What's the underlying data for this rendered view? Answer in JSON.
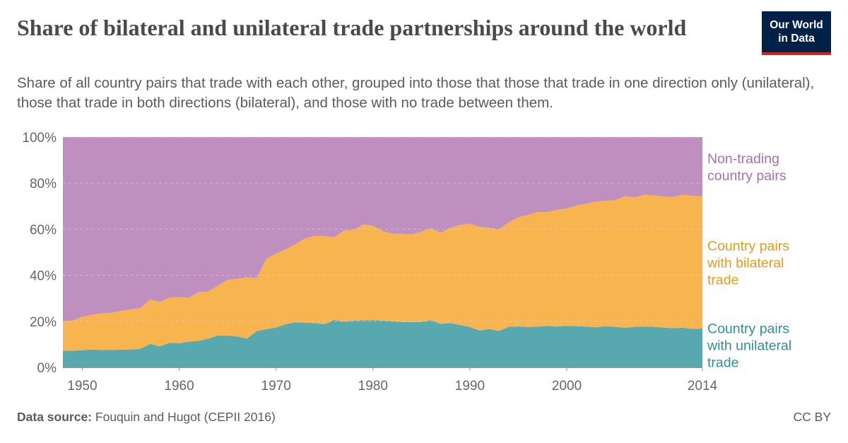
{
  "title": "Share of bilateral and unilateral trade partnerships around the world",
  "subtitle": "Share of all country pairs that trade with each other, grouped into those that those that trade in one direction only (unilateral), those that trade in both directions (bilateral), and those with no trade between them.",
  "logo": {
    "line1": "Our World",
    "line2": "in Data",
    "bg": "#002147",
    "accent": "#ce261e"
  },
  "footer": {
    "source_label": "Data source:",
    "source_text": "Fouquin and Hugot (CEPII 2016)",
    "license": "CC BY"
  },
  "chart_data": {
    "type": "area",
    "stacked": true,
    "x": [
      1948,
      1949,
      1950,
      1951,
      1952,
      1953,
      1954,
      1955,
      1956,
      1957,
      1958,
      1959,
      1960,
      1961,
      1962,
      1963,
      1964,
      1965,
      1966,
      1967,
      1968,
      1969,
      1970,
      1971,
      1972,
      1973,
      1974,
      1975,
      1976,
      1977,
      1978,
      1979,
      1980,
      1981,
      1982,
      1983,
      1984,
      1985,
      1986,
      1987,
      1988,
      1989,
      1990,
      1991,
      1992,
      1993,
      1994,
      1995,
      1996,
      1997,
      1998,
      1999,
      2000,
      2001,
      2002,
      2003,
      2004,
      2005,
      2006,
      2007,
      2008,
      2009,
      2010,
      2011,
      2012,
      2013,
      2014
    ],
    "xlim": [
      1948,
      2014
    ],
    "ylim": [
      0,
      100
    ],
    "y_ticks": [
      {
        "value": 0,
        "label": "0%"
      },
      {
        "value": 20,
        "label": "20%"
      },
      {
        "value": 40,
        "label": "40%"
      },
      {
        "value": 60,
        "label": "60%"
      },
      {
        "value": 80,
        "label": "80%"
      },
      {
        "value": 100,
        "label": "100%"
      }
    ],
    "x_ticks": [
      {
        "value": 1950,
        "label": "1950"
      },
      {
        "value": 1960,
        "label": "1960"
      },
      {
        "value": 1970,
        "label": "1970"
      },
      {
        "value": 1980,
        "label": "1980"
      },
      {
        "value": 1990,
        "label": "1990"
      },
      {
        "value": 2000,
        "label": "2000"
      },
      {
        "value": 2014,
        "label": "2014"
      }
    ],
    "series": [
      {
        "name": "Country pairs with unilateral trade",
        "label_lines": [
          "Country pairs",
          "with unilateral",
          "trade"
        ],
        "color": "#58a8b0",
        "label_color": "#2f8f96",
        "values": [
          7.2,
          7.2,
          7.5,
          7.8,
          7.6,
          7.6,
          7.7,
          7.8,
          8.0,
          10.2,
          9.1,
          10.7,
          10.5,
          11.2,
          11.5,
          12.5,
          13.9,
          13.8,
          13.4,
          12.5,
          15.7,
          16.6,
          17.3,
          18.8,
          19.6,
          19.4,
          19.2,
          18.8,
          20.6,
          19.8,
          20.3,
          20.4,
          20.5,
          20.3,
          20.0,
          19.7,
          19.6,
          19.8,
          20.5,
          18.9,
          19.2,
          18.4,
          17.5,
          16.0,
          16.7,
          15.9,
          17.6,
          17.8,
          17.5,
          17.7,
          18.0,
          17.7,
          18.0,
          17.9,
          17.7,
          17.4,
          17.9,
          17.6,
          17.2,
          17.6,
          17.7,
          17.6,
          17.3,
          17.0,
          17.2,
          16.7,
          16.9
        ]
      },
      {
        "name": "Country pairs with bilateral trade",
        "label_lines": [
          "Country pairs",
          "with bilateral",
          "trade"
        ],
        "color": "#f7b44f",
        "label_color": "#e69b1f",
        "values": [
          12.8,
          13.1,
          14.5,
          15.0,
          15.9,
          16.1,
          16.8,
          17.4,
          17.7,
          19.3,
          19.3,
          19.6,
          20.0,
          19.1,
          21.2,
          20.5,
          21.6,
          24.2,
          25.0,
          26.7,
          23.1,
          30.6,
          32.1,
          32.5,
          33.9,
          36.6,
          37.9,
          38.2,
          35.9,
          39.6,
          39.4,
          41.6,
          41.0,
          38.9,
          38.0,
          38.3,
          38.1,
          39.2,
          39.8,
          39.6,
          41.4,
          43.4,
          44.9,
          45.0,
          43.9,
          44.0,
          45.3,
          47.4,
          48.7,
          49.8,
          49.4,
          50.7,
          51.0,
          52.4,
          53.3,
          54.6,
          54.4,
          55.0,
          57.1,
          56.2,
          57.3,
          57.1,
          56.9,
          57.0,
          57.8,
          57.8,
          57.4
        ]
      },
      {
        "name": "Non-trading country pairs",
        "label_lines": [
          "Non-trading",
          "country pairs"
        ],
        "color": "#bf8fc0",
        "label_color": "#a970ab",
        "values": [
          80.0,
          79.7,
          78.0,
          77.2,
          76.5,
          76.3,
          75.5,
          74.8,
          74.3,
          70.5,
          71.6,
          69.7,
          69.5,
          69.7,
          67.3,
          67.0,
          64.5,
          62.0,
          61.6,
          60.8,
          61.2,
          52.8,
          50.6,
          48.7,
          46.5,
          44.0,
          42.9,
          43.0,
          43.5,
          40.6,
          40.3,
          38.0,
          38.5,
          40.8,
          42.0,
          42.0,
          42.3,
          41.0,
          39.7,
          41.5,
          39.4,
          38.2,
          37.6,
          39.0,
          39.4,
          40.1,
          37.1,
          34.8,
          33.8,
          32.5,
          32.6,
          31.6,
          31.0,
          29.7,
          29.0,
          28.0,
          27.7,
          27.4,
          25.7,
          26.2,
          25.0,
          25.3,
          25.8,
          26.0,
          25.0,
          25.5,
          25.7
        ]
      }
    ]
  }
}
